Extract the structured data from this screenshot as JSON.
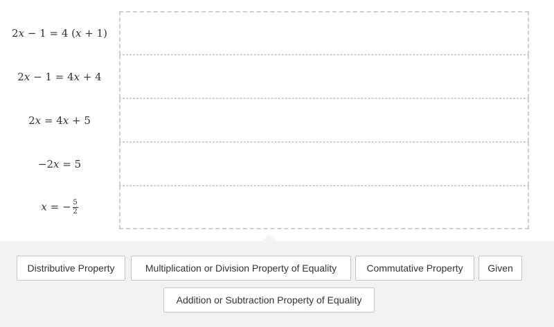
{
  "proof": {
    "statements": [
      {
        "id": "s1",
        "reason": ""
      },
      {
        "id": "s2",
        "reason": ""
      },
      {
        "id": "s3",
        "reason": ""
      },
      {
        "id": "s4",
        "reason": ""
      },
      {
        "id": "s5",
        "reason": ""
      }
    ]
  },
  "reason_bank": {
    "tiles": [
      "Distributive Property",
      "Multiplication or Division Property of Equality",
      "Commutative Property",
      "Given",
      "Addition or Subtraction Property of Equality"
    ]
  },
  "colors": {
    "tray_background": "#f2f2f2",
    "dropzone_border": "#cfcfcf",
    "tile_border": "#c6c6c6",
    "text": "#333333"
  }
}
